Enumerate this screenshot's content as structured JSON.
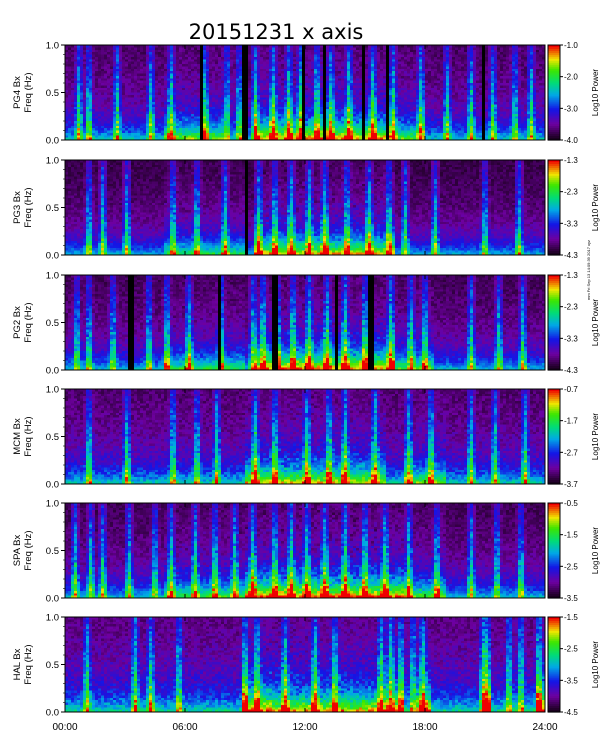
{
  "page_title": "20151231 x axis",
  "side_credit": "mm Fri Sep 13 14:09:39 2017 xyz",
  "chart_data": [
    {
      "type": "heatmap",
      "ylabel_station": "PG4 Bx",
      "ylabel_units": "Freq (Hz)",
      "ylim": [
        0,
        1.0
      ],
      "yticks": [
        "0.0",
        "0.5",
        "1.0"
      ],
      "colorbar": {
        "label": "Log10 Power",
        "min": -4.0,
        "max": -1.0,
        "ticks": [
          "-1.0",
          "-2.0",
          "-3.0",
          "-4.0"
        ]
      },
      "base_intensity": 0.28,
      "activity_windows": [
        [
          5,
          8,
          0.35
        ],
        [
          9.5,
          16,
          0.55
        ],
        [
          16,
          18,
          0.3
        ]
      ],
      "bursts": [
        0.7,
        1.2,
        2.6,
        4.3,
        5.3,
        7.0,
        8.1,
        8.7,
        9.5,
        10.4,
        11.2,
        11.8,
        12.6,
        13.3,
        14.2,
        15.4,
        16.4,
        17.8,
        19.1,
        20.3,
        21.4,
        22.5,
        23.3
      ],
      "gaps": [
        6.8,
        9.0,
        11.9,
        13.0,
        14.9,
        16.1,
        20.9
      ]
    },
    {
      "type": "heatmap",
      "ylabel_station": "PG3 Bx",
      "ylabel_units": "Freq (Hz)",
      "ylim": [
        0,
        1.0
      ],
      "yticks": [
        "0.0",
        "0.5",
        "1.0"
      ],
      "colorbar": {
        "label": "Log10 Power",
        "min": -4.3,
        "max": -1.3,
        "ticks": [
          "-1.3",
          "-2.3",
          "-3.3",
          "-4.3"
        ]
      },
      "base_intensity": 0.22,
      "activity_windows": [
        [
          9.5,
          16.5,
          0.55
        ],
        [
          5,
          9,
          0.25
        ]
      ],
      "bursts": [
        1.2,
        1.9,
        3.1,
        5.4,
        6.6,
        8.0,
        9.7,
        10.5,
        11.3,
        12.2,
        13.0,
        14.1,
        15.2,
        16.2,
        17.0,
        18.5,
        21.0,
        22.7
      ],
      "gaps": [
        9.1
      ]
    },
    {
      "type": "heatmap",
      "ylabel_station": "PG2 Bx",
      "ylabel_units": "Freq (Hz)",
      "ylim": [
        0,
        1.0
      ],
      "yticks": [
        "0.0",
        "0.5",
        "1.0"
      ],
      "colorbar": {
        "label": "Log10 Power",
        "min": -4.3,
        "max": -1.3,
        "ticks": [
          "-1.3",
          "-2.3",
          "-3.3",
          "-4.3"
        ]
      },
      "base_intensity": 0.25,
      "activity_windows": [
        [
          9.5,
          16.5,
          0.6
        ],
        [
          5,
          9,
          0.25
        ],
        [
          16.5,
          18.5,
          0.3
        ]
      ],
      "bursts": [
        0.6,
        1.2,
        2.4,
        4.2,
        5.1,
        6.2,
        7.8,
        9.4,
        9.9,
        10.6,
        11.4,
        12.2,
        13.1,
        14.0,
        15.0,
        16.3,
        17.3,
        18.0,
        20.3,
        21.7,
        22.9
      ],
      "gaps": [
        3.3,
        7.7,
        10.5,
        13.6,
        15.3
      ]
    },
    {
      "type": "heatmap",
      "ylabel_station": "MCM Bx",
      "ylabel_units": "Freq (Hz)",
      "ylim": [
        0,
        1.0
      ],
      "yticks": [
        "0.0",
        "0.5",
        "1.0"
      ],
      "colorbar": {
        "label": "Log10 Power",
        "min": -3.7,
        "max": -0.7,
        "ticks": [
          "-0.7",
          "-1.7",
          "-2.7",
          "-3.7"
        ]
      },
      "base_intensity": 0.3,
      "activity_windows": [
        [
          9,
          16,
          0.45
        ],
        [
          17,
          19,
          0.3
        ]
      ],
      "bursts": [
        1.2,
        3.1,
        5.4,
        6.6,
        7.6,
        9.5,
        10.5,
        12.1,
        13.2,
        14.0,
        15.5,
        17.2,
        18.3,
        20.3,
        21.5,
        23.0
      ],
      "gaps": [],
      "harmonic_lines": [
        0.1,
        0.2,
        0.3,
        0.4,
        0.5,
        0.6,
        0.7,
        0.8,
        0.9
      ]
    },
    {
      "type": "heatmap",
      "ylabel_station": "SPA Bx",
      "ylabel_units": "Freq (Hz)",
      "ylim": [
        0,
        1.0
      ],
      "yticks": [
        "0.0",
        "0.5",
        "1.0"
      ],
      "colorbar": {
        "label": "Log10 Power",
        "min": -3.5,
        "max": -0.5,
        "ticks": [
          "-0.5",
          "-1.5",
          "-2.5",
          "-3.5"
        ]
      },
      "base_intensity": 0.25,
      "activity_windows": [
        [
          9,
          17,
          0.65
        ],
        [
          5,
          9,
          0.3
        ],
        [
          17,
          19,
          0.35
        ]
      ],
      "bursts": [
        0.5,
        1.3,
        1.9,
        3.2,
        4.5,
        5.3,
        6.5,
        7.5,
        8.5,
        9.4,
        10.5,
        11.3,
        12.1,
        13.0,
        14.0,
        15.0,
        16.0,
        17.2,
        18.6,
        20.3,
        21.6,
        22.8
      ],
      "gaps": []
    },
    {
      "type": "heatmap",
      "ylabel_station": "HAL Bx",
      "ylabel_units": "Freq (Hz)",
      "ylim": [
        0,
        1.0
      ],
      "yticks": [
        "0.0",
        "0.5",
        "1.0"
      ],
      "colorbar": {
        "label": "Log10 Power",
        "min": -4.5,
        "max": -1.5,
        "ticks": [
          "-1.5",
          "-2.5",
          "-3.5",
          "-4.5"
        ]
      },
      "base_intensity": 0.35,
      "activity_windows": [
        [
          8.8,
          10.3,
          0.6
        ],
        [
          10.3,
          17,
          0.45
        ],
        [
          17.5,
          18.3,
          0.5
        ],
        [
          20.8,
          21.3,
          0.75
        ],
        [
          23.6,
          24,
          0.7
        ]
      ],
      "bursts": [
        1.1,
        3.5,
        4.3,
        5.7,
        9.0,
        9.6,
        11.0,
        12.5,
        13.5,
        15.8,
        16.3,
        16.8,
        17.4,
        17.9,
        20.9,
        21.1,
        22.2,
        22.8,
        23.7
      ],
      "gaps": []
    }
  ],
  "x_axis": {
    "range_hours": [
      0,
      24
    ],
    "ticks": [
      {
        "hour": 0,
        "label": "00:00"
      },
      {
        "hour": 6,
        "label": "06:00"
      },
      {
        "hour": 12,
        "label": "12:00"
      },
      {
        "hour": 18,
        "label": "18:00"
      },
      {
        "hour": 24,
        "label": "24:00"
      }
    ]
  }
}
